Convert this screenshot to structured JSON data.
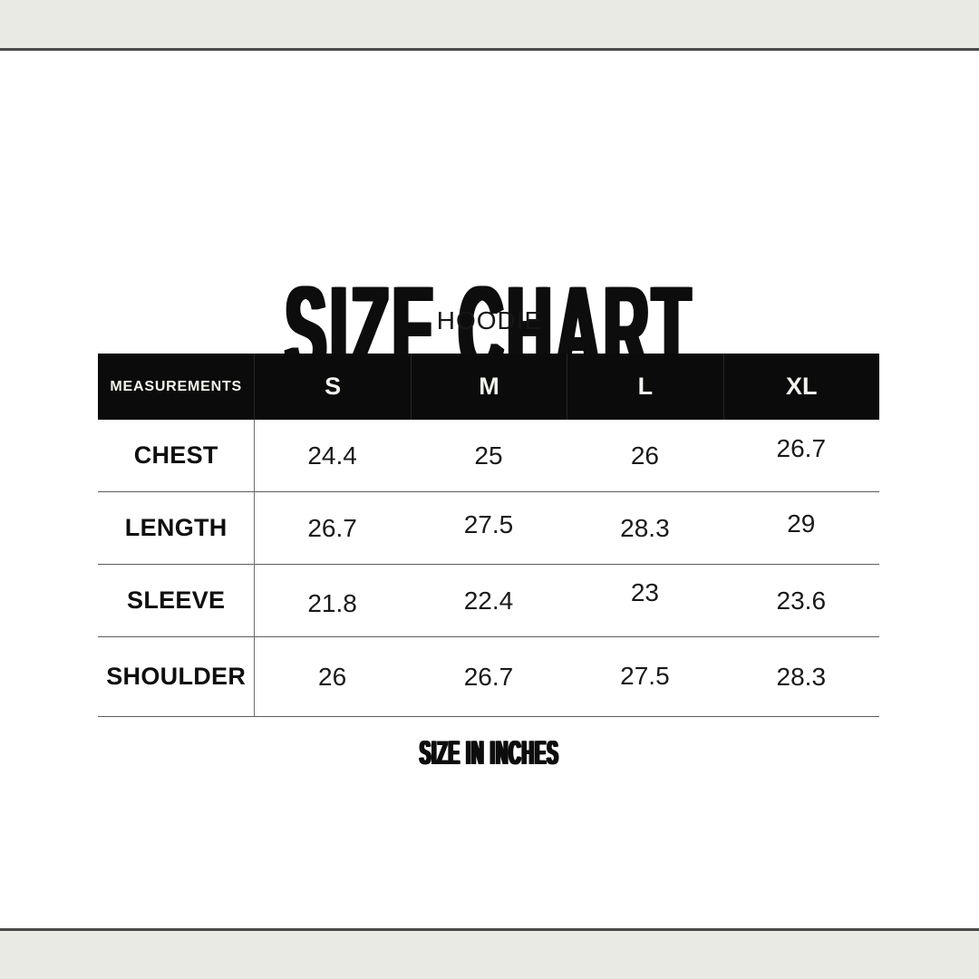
{
  "page": {
    "title": "SIZE CHART",
    "subtitle": "HOODIE",
    "footer_note": "SIZE IN INCHES"
  },
  "colors": {
    "background": "#ffffff",
    "band": "#e9eae3",
    "band_line": "#4a4a4a",
    "table_header_bg": "#0b0b0b",
    "table_header_text": "#f3f3ee",
    "grid_line": "#5d5d5d",
    "text": "#0d0d0d"
  },
  "chart_data": {
    "type": "table",
    "title": "SIZE CHART",
    "subtitle": "HOODIE",
    "unit_note": "SIZE IN INCHES",
    "units": "inches",
    "columns": [
      "MEASUREMENTS",
      "S",
      "M",
      "L",
      "XL"
    ],
    "rows": [
      {
        "label": "CHEST",
        "values": [
          "24.4",
          "25",
          "26",
          "26.7"
        ]
      },
      {
        "label": "LENGTH",
        "values": [
          "26.7",
          "27.5",
          "28.3",
          "29"
        ]
      },
      {
        "label": "SLEEVE",
        "values": [
          "21.8",
          "22.4",
          "23",
          "23.6"
        ]
      },
      {
        "label": "SHOULDER",
        "values": [
          "26",
          "26.7",
          "27.5",
          "28.3"
        ]
      }
    ]
  }
}
